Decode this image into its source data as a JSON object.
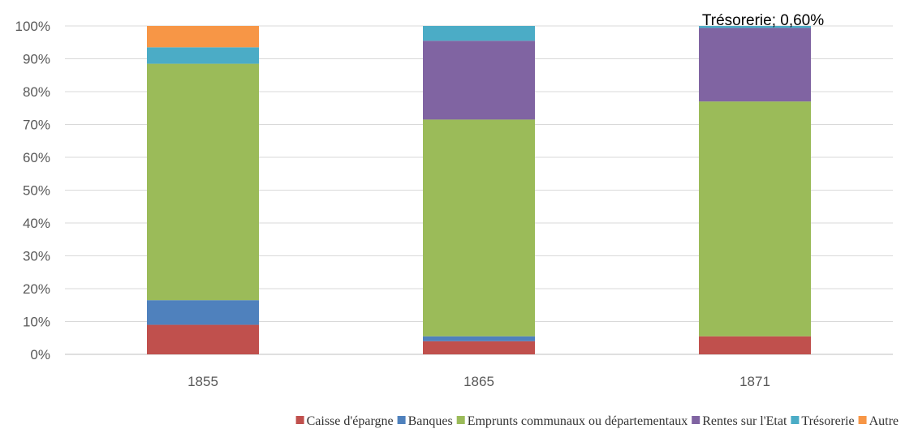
{
  "chart_data": {
    "type": "bar",
    "stacked": true,
    "normalized": true,
    "categories": [
      "1855",
      "1865",
      "1871"
    ],
    "series": [
      {
        "name": "Caisse d'épargne",
        "color": "#C0504D",
        "values": [
          9.0,
          4.0,
          5.5
        ]
      },
      {
        "name": "Banques",
        "color": "#4F81BD",
        "values": [
          7.5,
          1.5,
          0.0
        ]
      },
      {
        "name": "Emprunts communaux ou départementaux",
        "color": "#9BBB59",
        "values": [
          72.0,
          66.0,
          71.5
        ]
      },
      {
        "name": "Rentes sur l'Etat",
        "color": "#8064A2",
        "values": [
          0.0,
          24.0,
          22.4
        ]
      },
      {
        "name": "Trésorerie",
        "color": "#4BACC6",
        "values": [
          5.0,
          4.5,
          0.6
        ]
      },
      {
        "name": "Autre",
        "color": "#F79646",
        "values": [
          6.5,
          0.0,
          0.0
        ]
      }
    ],
    "ylim": [
      0,
      100
    ],
    "y_ticks": [
      "0%",
      "10%",
      "20%",
      "30%",
      "40%",
      "50%",
      "60%",
      "70%",
      "80%",
      "90%",
      "100%"
    ],
    "grid": true,
    "legend_position": "bottom",
    "annotations": [
      {
        "text": "Trésorerie; 0,60%",
        "category": "1871",
        "series": "Trésorerie"
      }
    ]
  }
}
